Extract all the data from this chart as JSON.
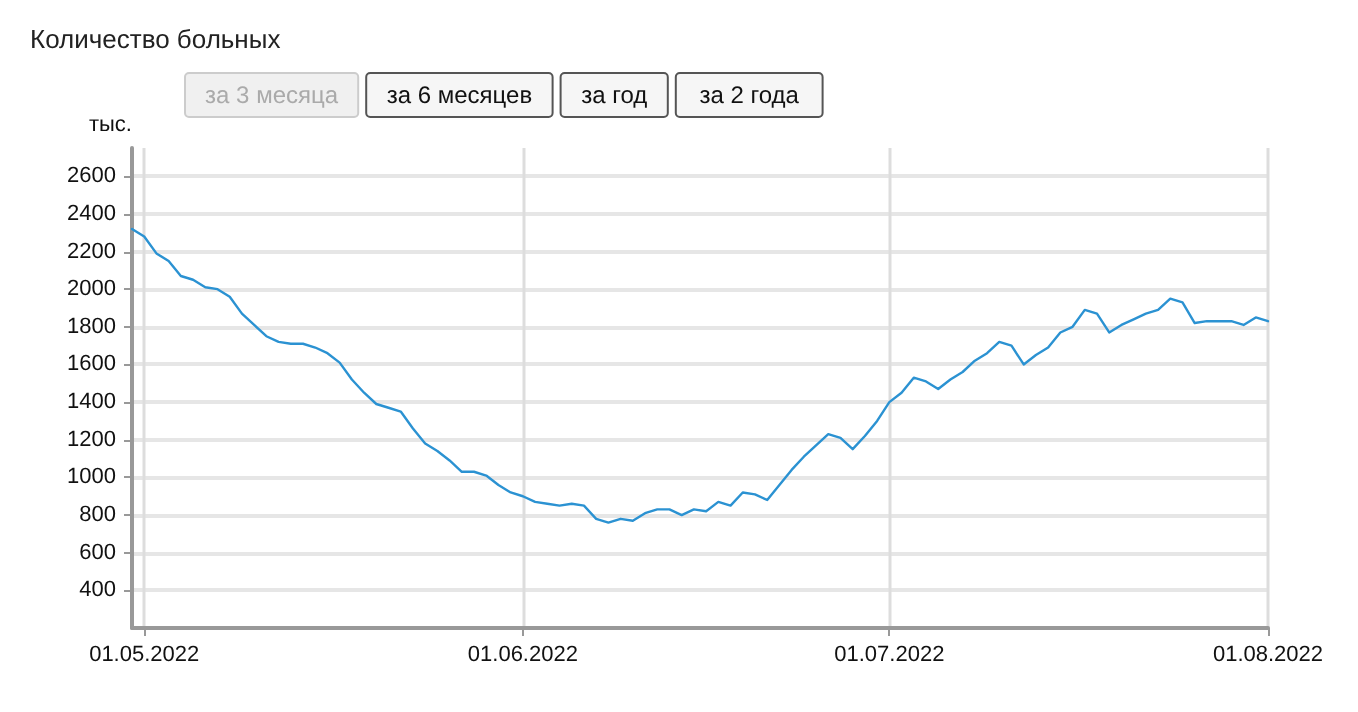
{
  "chart_data": {
    "type": "line",
    "title": "Количество больных",
    "ylabel": "тыс.",
    "annotations": [
      "за 3 месяца",
      "за 6 месяцев",
      "за год",
      "за 2 года"
    ],
    "x": [
      "2022-04-30",
      "2022-05-01",
      "2022-05-02",
      "2022-05-03",
      "2022-05-04",
      "2022-05-05",
      "2022-05-06",
      "2022-05-07",
      "2022-05-08",
      "2022-05-09",
      "2022-05-10",
      "2022-05-11",
      "2022-05-12",
      "2022-05-13",
      "2022-05-14",
      "2022-05-15",
      "2022-05-16",
      "2022-05-17",
      "2022-05-18",
      "2022-05-19",
      "2022-05-20",
      "2022-05-21",
      "2022-05-22",
      "2022-05-23",
      "2022-05-24",
      "2022-05-25",
      "2022-05-26",
      "2022-05-27",
      "2022-05-28",
      "2022-05-29",
      "2022-05-30",
      "2022-05-31",
      "2022-06-01",
      "2022-06-02",
      "2022-06-03",
      "2022-06-04",
      "2022-06-05",
      "2022-06-06",
      "2022-06-07",
      "2022-06-08",
      "2022-06-09",
      "2022-06-10",
      "2022-06-11",
      "2022-06-12",
      "2022-06-13",
      "2022-06-14",
      "2022-06-15",
      "2022-06-16",
      "2022-06-17",
      "2022-06-18",
      "2022-06-19",
      "2022-06-20",
      "2022-06-21",
      "2022-06-22",
      "2022-06-23",
      "2022-06-24",
      "2022-06-25",
      "2022-06-26",
      "2022-06-27",
      "2022-06-28",
      "2022-06-29",
      "2022-06-30",
      "2022-07-01",
      "2022-07-02",
      "2022-07-03",
      "2022-07-04",
      "2022-07-05",
      "2022-07-06",
      "2022-07-07",
      "2022-07-08",
      "2022-07-09",
      "2022-07-10",
      "2022-07-11",
      "2022-07-12",
      "2022-07-13",
      "2022-07-14",
      "2022-07-15",
      "2022-07-16",
      "2022-07-17",
      "2022-07-18",
      "2022-07-19",
      "2022-07-20",
      "2022-07-21",
      "2022-07-22",
      "2022-07-23",
      "2022-07-24",
      "2022-07-25",
      "2022-07-26",
      "2022-07-27",
      "2022-07-28",
      "2022-07-29",
      "2022-07-30",
      "2022-07-31",
      "2022-08-01"
    ],
    "series": [
      {
        "color": "#2b92d2",
        "values": [
          2320,
          2280,
          2190,
          2150,
          2070,
          2050,
          2010,
          2000,
          1960,
          1870,
          1810,
          1750,
          1720,
          1710,
          1710,
          1690,
          1660,
          1610,
          1520,
          1450,
          1390,
          1370,
          1350,
          1260,
          1180,
          1140,
          1090,
          1030,
          1030,
          1010,
          960,
          920,
          900,
          870,
          860,
          850,
          860,
          850,
          780,
          760,
          780,
          770,
          810,
          830,
          830,
          800,
          830,
          820,
          870,
          850,
          920,
          910,
          880,
          960,
          1040,
          1110,
          1170,
          1230,
          1210,
          1150,
          1220,
          1300,
          1400,
          1450,
          1530,
          1510,
          1470,
          1520,
          1560,
          1620,
          1660,
          1720,
          1700,
          1600,
          1650,
          1690,
          1770,
          1800,
          1890,
          1870,
          1770,
          1810,
          1840,
          1870,
          1890,
          1950,
          1930,
          1820,
          1830,
          1830,
          1830,
          1810,
          1850,
          1830
        ]
      }
    ],
    "xlim": [
      "2022-04-30",
      "2022-08-01"
    ],
    "xticks": [
      {
        "value": "2022-05-01",
        "label": "01.05.2022"
      },
      {
        "value": "2022-06-01",
        "label": "01.06.2022"
      },
      {
        "value": "2022-07-01",
        "label": "01.07.2022"
      },
      {
        "value": "2022-08-01",
        "label": "01.08.2022"
      }
    ],
    "ylim": [
      200,
      2750
    ],
    "yticks": [
      400,
      600,
      800,
      1000,
      1200,
      1400,
      1600,
      1800,
      2000,
      2200,
      2400,
      2600
    ],
    "grid": true,
    "marker": "none",
    "line_style": "solid"
  }
}
